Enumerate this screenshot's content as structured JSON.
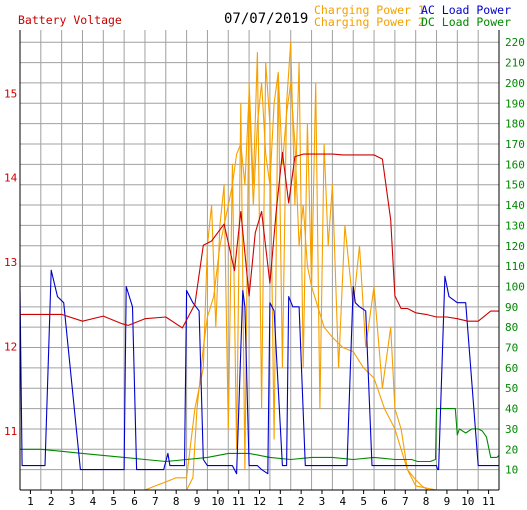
{
  "header": {
    "left_title": "Battery Voltage",
    "date": "07/07/2019",
    "legend": [
      {
        "label": "Charging Power 1",
        "color": "#f5a000"
      },
      {
        "label": "Charging Power 2",
        "color": "#f5a000"
      },
      {
        "label": "AC Load Power",
        "color": "#0000cc"
      },
      {
        "label": "DC Load Power",
        "color": "#008800"
      }
    ]
  },
  "chart_data": {
    "type": "line",
    "x_ticks": [
      "1",
      "2",
      "3",
      "4",
      "5",
      "6",
      "7",
      "8",
      "9",
      "10",
      "11",
      "12",
      "1",
      "2",
      "3",
      "4",
      "5",
      "6",
      "7",
      "8",
      "9",
      "10",
      "11"
    ],
    "x_range": [
      0,
      23
    ],
    "y_left": {
      "label": "Battery Voltage",
      "range": [
        10.3,
        15.75
      ],
      "ticks": [
        11,
        12,
        13,
        14,
        15
      ],
      "color": "#cc0000"
    },
    "y_right": {
      "range": [
        0,
        226
      ],
      "ticks": [
        10,
        20,
        30,
        40,
        50,
        60,
        70,
        80,
        90,
        100,
        110,
        120,
        130,
        140,
        150,
        160,
        170,
        180,
        190,
        200,
        210,
        220
      ],
      "color": "#008800"
    },
    "grid": true,
    "series": [
      {
        "name": "Battery Voltage",
        "axis": "left",
        "color": "#cc0000",
        "x": [
          0,
          1,
          2,
          3,
          4,
          4.9,
          5.2,
          6,
          7,
          7.8,
          8.4,
          8.8,
          9.2,
          9.8,
          10.3,
          10.6,
          11,
          11.3,
          11.6,
          12,
          12.3,
          12.6,
          12.9,
          13.2,
          13.6,
          14,
          14.6,
          15,
          15.5,
          16,
          16.5,
          17,
          17.4,
          17.8,
          18,
          18.3,
          18.6,
          19,
          19.5,
          20,
          20.5,
          21,
          21.5,
          22,
          22.6,
          23
        ],
        "y": [
          12.38,
          12.38,
          12.38,
          12.3,
          12.36,
          12.27,
          12.25,
          12.33,
          12.35,
          12.22,
          12.5,
          13.2,
          13.25,
          13.45,
          12.9,
          13.6,
          12.6,
          13.35,
          13.6,
          12.75,
          13.6,
          14.3,
          13.7,
          14.25,
          14.28,
          14.28,
          14.28,
          14.28,
          14.27,
          14.27,
          14.27,
          14.27,
          14.22,
          13.5,
          12.6,
          12.45,
          12.45,
          12.4,
          12.38,
          12.35,
          12.35,
          12.33,
          12.3,
          12.3,
          12.42,
          12.42
        ]
      },
      {
        "name": "AC Load Power",
        "axis": "right",
        "color": "#0000cc",
        "x": [
          0,
          0.1,
          0.9,
          1.05,
          1.2,
          1.5,
          1.8,
          2.1,
          2.9,
          3.1,
          3.2,
          4.8,
          5,
          5.1,
          5.4,
          5.6,
          6.9,
          7.1,
          7.2,
          7.7,
          7.9,
          8,
          8.3,
          8.6,
          8.8,
          9,
          9.2,
          9.9,
          10,
          10.1,
          10.2,
          10.4,
          10.7,
          10.8,
          11,
          11.1,
          11.4,
          11.6,
          11.9,
          12,
          12.2,
          12.6,
          12.8,
          12.9,
          13.1,
          13.3,
          13.4,
          13.7,
          14,
          14.2,
          14.6,
          14.9,
          15,
          15.3,
          15.4,
          15.7,
          16,
          16.1,
          16.3,
          16.6,
          16.9,
          17,
          17.3,
          17.6,
          18,
          18.3,
          18.6,
          19,
          19.1,
          20,
          20.05,
          20.1,
          20.4,
          20.6,
          21,
          21.2,
          21.4,
          22,
          23
        ],
        "y": [
          98,
          12,
          12,
          12,
          12,
          108,
          95,
          92,
          10,
          10,
          10,
          10,
          10,
          100,
          90,
          10,
          10,
          18,
          12,
          12,
          12,
          98,
          92,
          88,
          15,
          12,
          12,
          12,
          12,
          12,
          12,
          8,
          98,
          90,
          12,
          12,
          12,
          10,
          8,
          92,
          88,
          12,
          12,
          95,
          90,
          90,
          90,
          12,
          12,
          12,
          12,
          12,
          12,
          12,
          12,
          12,
          100,
          92,
          90,
          88,
          12,
          12,
          12,
          12,
          12,
          12,
          12,
          12,
          12,
          12,
          10,
          10,
          105,
          95,
          92,
          92,
          92,
          12,
          12
        ]
      },
      {
        "name": "Charging Power 1",
        "axis": "right",
        "color": "#f5a000",
        "x": [
          0,
          1,
          2,
          3,
          4,
          5,
          6,
          7,
          7.5,
          8,
          8.3,
          8.5,
          8.8,
          9,
          9.3,
          9.6,
          9.8,
          10,
          10.2,
          10.4,
          10.6,
          10.8,
          11,
          11.2,
          11.4,
          11.6,
          11.8,
          12,
          12.2,
          12.4,
          12.6,
          12.8,
          13,
          13.2,
          13.4,
          13.6,
          13.8,
          14,
          14.3,
          14.6,
          15,
          15.5,
          16,
          16.5,
          17,
          17.5,
          18,
          18.3,
          18.6,
          19,
          19.3,
          19.6,
          20,
          20.5,
          21,
          22,
          23
        ],
        "y": [
          0,
          0,
          0,
          0,
          0,
          0,
          0,
          0,
          0,
          0,
          6,
          40,
          70,
          85,
          95,
          120,
          130,
          140,
          150,
          165,
          170,
          150,
          195,
          140,
          180,
          200,
          165,
          150,
          190,
          205,
          160,
          185,
          200,
          170,
          120,
          140,
          110,
          100,
          90,
          80,
          75,
          70,
          68,
          60,
          55,
          40,
          30,
          20,
          10,
          5,
          2,
          0,
          0,
          0,
          0,
          0,
          0
        ]
      },
      {
        "name": "Charging Power 2",
        "axis": "right",
        "color": "#f5a000",
        "x": [
          0,
          6,
          6.5,
          7,
          7.5,
          8,
          8.4,
          8.8,
          9,
          9.2,
          9.4,
          9.6,
          9.8,
          10,
          10.2,
          10.4,
          10.6,
          10.8,
          11,
          11.2,
          11.4,
          11.6,
          11.8,
          12,
          12.2,
          12.4,
          12.6,
          12.8,
          13,
          13.2,
          13.4,
          13.6,
          13.8,
          14,
          14.2,
          14.4,
          14.6,
          14.8,
          15,
          15.3,
          15.6,
          16,
          16.3,
          16.6,
          17,
          17.4,
          17.8,
          18,
          18.3,
          18.6,
          19,
          20,
          23
        ],
        "y": [
          0,
          0,
          2,
          4,
          6,
          6,
          40,
          60,
          120,
          140,
          80,
          130,
          150,
          30,
          160,
          20,
          190,
          10,
          200,
          150,
          215,
          40,
          210,
          180,
          25,
          205,
          60,
          190,
          220,
          140,
          210,
          60,
          180,
          100,
          200,
          40,
          170,
          120,
          150,
          60,
          130,
          90,
          120,
          70,
          100,
          50,
          80,
          40,
          30,
          10,
          2,
          0,
          0
        ]
      },
      {
        "name": "DC Load Power",
        "axis": "right",
        "color": "#008800",
        "x": [
          0,
          1,
          2,
          3,
          4,
          5,
          6,
          7,
          8,
          9,
          10,
          11,
          12,
          13,
          14,
          15,
          16,
          17,
          18,
          18.8,
          19.1,
          19.4,
          19.7,
          19.95,
          20,
          20.9,
          21,
          21.1,
          21.4,
          21.7,
          22,
          22.2,
          22.4,
          22.6,
          22.9,
          23
        ],
        "y": [
          20,
          20,
          19,
          18,
          17,
          16,
          15,
          14,
          15,
          16,
          18,
          18,
          16,
          15,
          16,
          16,
          15,
          16,
          15,
          15,
          14,
          14,
          14,
          15,
          40,
          40,
          27,
          30,
          28,
          30,
          30,
          29,
          26,
          16,
          16,
          17
        ]
      }
    ]
  }
}
